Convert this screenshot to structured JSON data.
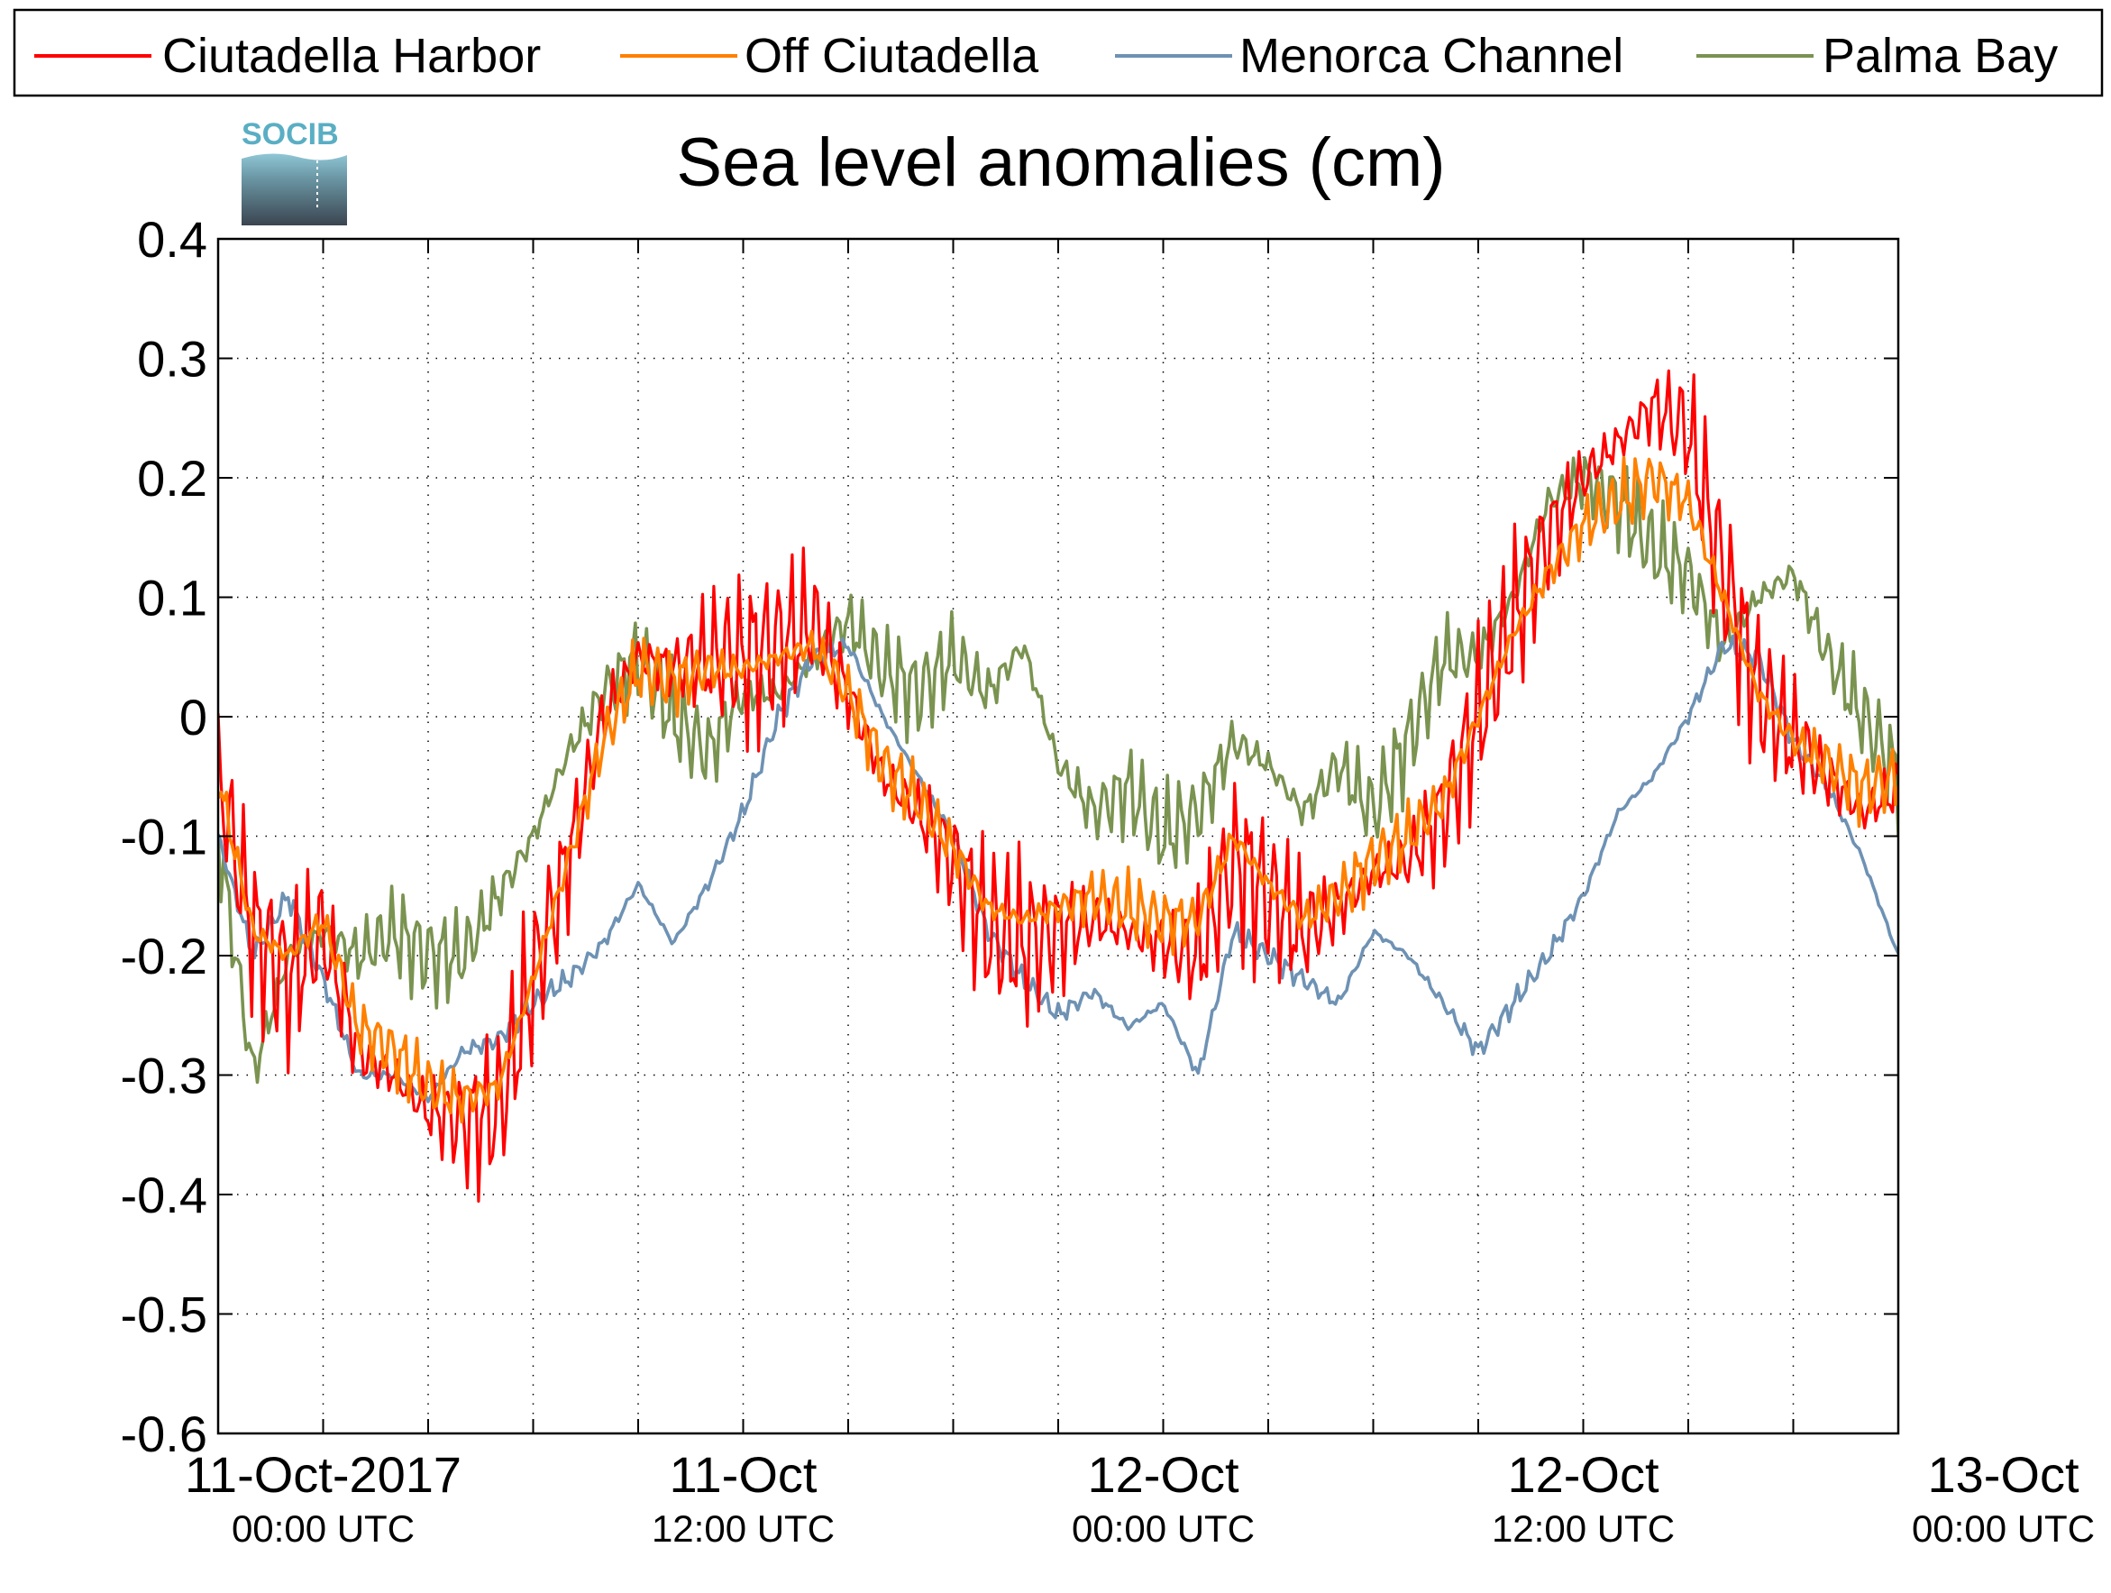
{
  "chart_data": {
    "type": "line",
    "title": "Sea level anomalies (cm)",
    "logo_text": "SOCIB",
    "ylim": [
      -0.6,
      0.4
    ],
    "yticks": [
      0.4,
      0.3,
      0.2,
      0.1,
      0,
      -0.1,
      -0.2,
      -0.3,
      -0.4,
      -0.5,
      -0.6
    ],
    "ytick_labels": [
      "0.4",
      "0.3",
      "0.2",
      "0.1",
      "0",
      "-0.1",
      "-0.2",
      "-0.3",
      "-0.4",
      "-0.5",
      "-0.6"
    ],
    "xlim_hours": [
      -3,
      45
    ],
    "xticks_hours": [
      0,
      3,
      6,
      9,
      12,
      15,
      18,
      21,
      24,
      27,
      30,
      33,
      36,
      39,
      42,
      45
    ],
    "xtick_labels": [
      {
        "hours": 0,
        "line1": "11-Oct-2017",
        "line2": "00:00 UTC"
      },
      {
        "hours": 12,
        "line1": "11-Oct",
        "line2": "12:00 UTC"
      },
      {
        "hours": 24,
        "line1": "12-Oct",
        "line2": "00:00 UTC"
      },
      {
        "hours": 36,
        "line1": "12-Oct",
        "line2": "12:00 UTC"
      },
      {
        "hours": 48,
        "line1": "13-Oct",
        "line2": "00:00 UTC"
      }
    ],
    "grid": true,
    "legend_position": "top",
    "series": [
      {
        "name": "Ciutadella Harbor",
        "color": "#ff0000",
        "x_hours": [
          -3,
          -2,
          -1,
          0,
          1,
          2,
          3,
          4,
          5,
          6,
          7,
          8,
          9,
          10,
          11,
          12,
          13,
          14,
          15,
          16,
          17,
          18,
          19,
          20,
          21,
          22,
          23,
          24,
          25,
          26,
          27,
          28,
          29,
          30,
          31,
          32,
          33,
          34,
          35,
          36,
          37,
          38,
          39,
          40,
          41,
          42,
          43,
          44,
          45
        ],
        "values": [
          -0.05,
          -0.18,
          -0.22,
          -0.18,
          -0.28,
          -0.3,
          -0.33,
          -0.34,
          -0.33,
          -0.22,
          -0.12,
          0.0,
          0.05,
          0.04,
          0.05,
          0.05,
          0.06,
          0.08,
          0.02,
          -0.05,
          -0.08,
          -0.12,
          -0.18,
          -0.19,
          -0.18,
          -0.17,
          -0.18,
          -0.19,
          -0.2,
          -0.12,
          -0.15,
          -0.18,
          -0.16,
          -0.13,
          -0.12,
          -0.08,
          0.0,
          0.08,
          0.15,
          0.2,
          0.23,
          0.26,
          0.24,
          0.12,
          0.02,
          -0.02,
          -0.05,
          -0.08,
          -0.06
        ],
        "oscillation_amplitude": 0.09
      },
      {
        "name": "Off Ciutadella",
        "color": "#ff8000",
        "x_hours": [
          -3,
          -2,
          -1,
          0,
          1,
          2,
          3,
          4,
          5,
          6,
          7,
          8,
          9,
          10,
          11,
          12,
          13,
          14,
          15,
          16,
          17,
          18,
          19,
          20,
          21,
          22,
          23,
          24,
          25,
          26,
          27,
          28,
          29,
          30,
          31,
          32,
          33,
          34,
          35,
          36,
          37,
          38,
          39,
          40,
          41,
          42,
          43,
          44,
          45
        ],
        "values": [
          -0.05,
          -0.18,
          -0.2,
          -0.17,
          -0.26,
          -0.28,
          -0.31,
          -0.32,
          -0.31,
          -0.22,
          -0.12,
          -0.02,
          0.04,
          0.03,
          0.04,
          0.04,
          0.05,
          0.06,
          0.02,
          -0.04,
          -0.07,
          -0.11,
          -0.16,
          -0.17,
          -0.16,
          -0.15,
          -0.16,
          -0.17,
          -0.17,
          -0.1,
          -0.14,
          -0.17,
          -0.15,
          -0.12,
          -0.1,
          -0.07,
          0.0,
          0.07,
          0.12,
          0.16,
          0.18,
          0.2,
          0.18,
          0.1,
          0.02,
          -0.02,
          -0.04,
          -0.06,
          -0.05
        ],
        "oscillation_amplitude": 0.035
      },
      {
        "name": "Menorca Channel",
        "color": "#6e92b4",
        "x_hours": [
          -3,
          -2,
          -1,
          0,
          1,
          2,
          3,
          4,
          5,
          6,
          7,
          8,
          9,
          10,
          11,
          12,
          13,
          14,
          15,
          16,
          17,
          18,
          19,
          20,
          21,
          22,
          23,
          24,
          25,
          26,
          27,
          28,
          29,
          30,
          31,
          32,
          33,
          34,
          35,
          36,
          37,
          38,
          39,
          40,
          41,
          42,
          43,
          44,
          45
        ],
        "values": [
          -0.1,
          -0.2,
          -0.15,
          -0.22,
          -0.3,
          -0.3,
          -0.32,
          -0.28,
          -0.27,
          -0.24,
          -0.22,
          -0.19,
          -0.14,
          -0.19,
          -0.14,
          -0.08,
          0.0,
          0.05,
          0.06,
          0.0,
          -0.05,
          -0.1,
          -0.18,
          -0.22,
          -0.25,
          -0.23,
          -0.26,
          -0.24,
          -0.3,
          -0.18,
          -0.2,
          -0.22,
          -0.24,
          -0.18,
          -0.2,
          -0.24,
          -0.28,
          -0.24,
          -0.2,
          -0.15,
          -0.08,
          -0.05,
          0.0,
          0.06,
          0.05,
          -0.02,
          -0.06,
          -0.12,
          -0.2
        ],
        "oscillation_amplitude": 0.012
      },
      {
        "name": "Palma Bay",
        "color": "#7a9350",
        "x_hours": [
          -3,
          -2,
          -1,
          0,
          1,
          2,
          3,
          4,
          5,
          6,
          7,
          8,
          9,
          10,
          11,
          12,
          13,
          14,
          15,
          16,
          17,
          18,
          19,
          20,
          21,
          22,
          23,
          24,
          25,
          26,
          27,
          28,
          29,
          30,
          31,
          32,
          33,
          34,
          35,
          36,
          37,
          38,
          39,
          40,
          41,
          42,
          43,
          44,
          45
        ],
        "values": [
          -0.1,
          -0.3,
          -0.2,
          -0.18,
          -0.2,
          -0.18,
          -0.2,
          -0.2,
          -0.15,
          -0.1,
          -0.03,
          0.02,
          0.05,
          0.0,
          -0.03,
          0.02,
          0.02,
          0.05,
          0.08,
          0.04,
          0.02,
          0.05,
          0.02,
          0.06,
          -0.04,
          -0.08,
          -0.06,
          -0.1,
          -0.08,
          -0.02,
          -0.04,
          -0.08,
          -0.04,
          -0.08,
          -0.02,
          0.05,
          0.05,
          0.1,
          0.18,
          0.2,
          0.18,
          0.14,
          0.12,
          0.06,
          0.1,
          0.12,
          0.05,
          0.0,
          -0.05
        ],
        "oscillation_amplitude": 0.05
      }
    ]
  }
}
